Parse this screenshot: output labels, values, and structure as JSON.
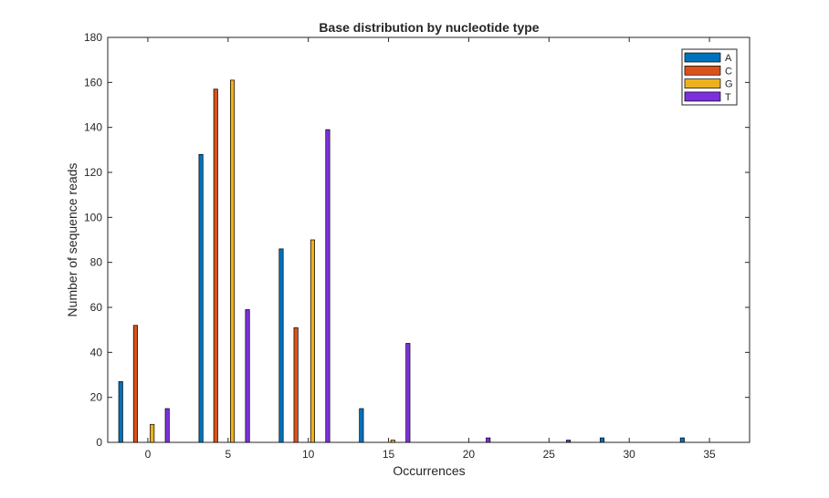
{
  "chart_data": {
    "type": "bar",
    "title": "Base distribution by nucleotide type",
    "xlabel": "Occurrences",
    "ylabel": "Number of sequence reads",
    "categories": [
      0,
      5,
      10,
      15,
      20,
      25,
      30,
      35
    ],
    "xticks": [
      "0",
      "5",
      "10",
      "15",
      "20",
      "25",
      "30",
      "35"
    ],
    "yticks": [
      "0",
      "20",
      "40",
      "60",
      "80",
      "100",
      "120",
      "140",
      "160",
      "180"
    ],
    "ylim": [
      0,
      180
    ],
    "grid": false,
    "legend_position": "top-right",
    "series": [
      {
        "name": "A",
        "color": "#0072BD",
        "values": [
          27,
          128,
          86,
          15,
          0,
          0,
          2,
          2
        ]
      },
      {
        "name": "C",
        "color": "#D95319",
        "values": [
          52,
          157,
          51,
          0,
          0,
          0,
          0,
          0
        ]
      },
      {
        "name": "G",
        "color": "#EDB120",
        "values": [
          8,
          161,
          90,
          1,
          0,
          0,
          0,
          0
        ]
      },
      {
        "name": "T",
        "color": "#7E2FDD",
        "values": [
          15,
          59,
          139,
          44,
          2,
          1,
          0,
          0
        ]
      }
    ]
  }
}
